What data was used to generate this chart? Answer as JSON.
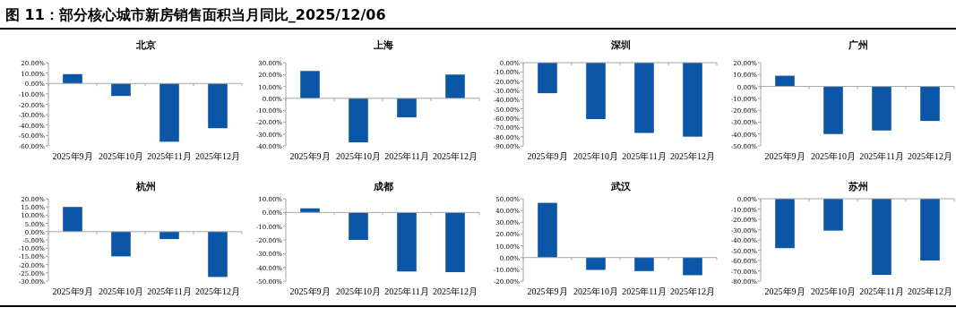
{
  "chart_data": [
    {
      "type": "bar",
      "title": "北京",
      "annotations": [
        "图 11：部分核心城市新房销售面积当月同比_2025/12/06"
      ],
      "categories": [
        "2025年9月",
        "2025年10月",
        "2025年11月",
        "2025年12月"
      ],
      "values": [
        9,
        -12,
        -56,
        -43
      ],
      "color": "#0b56a6",
      "ylim": [
        -60,
        20
      ],
      "yticks": [
        {
          "value": -60,
          "label": "-60.00%"
        },
        {
          "value": -50,
          "label": "-50.00%"
        },
        {
          "value": -40,
          "label": "-40.00%"
        },
        {
          "value": -30,
          "label": "-30.00%"
        },
        {
          "value": -20,
          "label": "-20.00%"
        },
        {
          "value": -10,
          "label": "-10.00%"
        },
        {
          "value": 0,
          "label": "0.00%"
        },
        {
          "value": 10,
          "label": "10.00%"
        },
        {
          "value": 20,
          "label": "20.00%"
        }
      ]
    },
    {
      "type": "bar",
      "title": "上海",
      "categories": [
        "2025年9月",
        "2025年10月",
        "2025年11月",
        "2025年12月"
      ],
      "values": [
        23,
        -37,
        -16,
        20
      ],
      "color": "#0b56a6",
      "ylim": [
        -40,
        30
      ],
      "yticks": [
        {
          "value": -40,
          "label": "-40.00%"
        },
        {
          "value": -30,
          "label": "-30.00%"
        },
        {
          "value": -20,
          "label": "-20.00%"
        },
        {
          "value": -10,
          "label": "-10.00%"
        },
        {
          "value": 0,
          "label": "0.00%"
        },
        {
          "value": 10,
          "label": "10.00%"
        },
        {
          "value": 20,
          "label": "20.00%"
        },
        {
          "value": 30,
          "label": "30.00%"
        }
      ]
    },
    {
      "type": "bar",
      "title": "深圳",
      "categories": [
        "2025年9月",
        "2025年10月",
        "2025年11月",
        "2025年12月"
      ],
      "values": [
        -33,
        -61,
        -76,
        -80
      ],
      "color": "#0b56a6",
      "ylim": [
        -90,
        0
      ],
      "yticks": [
        {
          "value": -90,
          "label": "-90.00%"
        },
        {
          "value": -80,
          "label": "-80.00%"
        },
        {
          "value": -70,
          "label": "-70.00%"
        },
        {
          "value": -60,
          "label": "-60.00%"
        },
        {
          "value": -50,
          "label": "-50.00%"
        },
        {
          "value": -40,
          "label": "-40.00%"
        },
        {
          "value": -30,
          "label": "-30.00%"
        },
        {
          "value": -20,
          "label": "-20.00%"
        },
        {
          "value": -10,
          "label": "-10.00%"
        },
        {
          "value": 0,
          "label": "0.00%"
        }
      ]
    },
    {
      "type": "bar",
      "title": "广州",
      "categories": [
        "2025年9月",
        "2025年10月",
        "2025年11月",
        "2025年12月"
      ],
      "values": [
        9,
        -40,
        -37,
        -29
      ],
      "color": "#0b56a6",
      "ylim": [
        -50,
        20
      ],
      "yticks": [
        {
          "value": -50,
          "label": "-50.00%"
        },
        {
          "value": -40,
          "label": "-40.00%"
        },
        {
          "value": -30,
          "label": "-30.00%"
        },
        {
          "value": -20,
          "label": "-20.00%"
        },
        {
          "value": -10,
          "label": "-10.00%"
        },
        {
          "value": 0,
          "label": "0.00%"
        },
        {
          "value": 10,
          "label": "10.00%"
        },
        {
          "value": 20,
          "label": "20.00%"
        }
      ]
    },
    {
      "type": "bar",
      "title": "杭州",
      "categories": [
        "2025年9月",
        "2025年10月",
        "2025年11月",
        "2025年12月"
      ],
      "values": [
        15,
        -15,
        -4.5,
        -27.5
      ],
      "color": "#0b56a6",
      "ylim": [
        -30,
        20
      ],
      "yticks": [
        {
          "value": -30,
          "label": "-30.00%"
        },
        {
          "value": -25,
          "label": "-25.00%"
        },
        {
          "value": -20,
          "label": "-20.00%"
        },
        {
          "value": -15,
          "label": "-15.00%"
        },
        {
          "value": -10,
          "label": "-10.00%"
        },
        {
          "value": -5,
          "label": "-5.00%"
        },
        {
          "value": 0,
          "label": "0.00%"
        },
        {
          "value": 5,
          "label": "5.00%"
        },
        {
          "value": 10,
          "label": "10.00%"
        },
        {
          "value": 15,
          "label": "15.00%"
        },
        {
          "value": 20,
          "label": "20.00%"
        }
      ]
    },
    {
      "type": "bar",
      "title": "成都",
      "categories": [
        "2025年9月",
        "2025年10月",
        "2025年11月",
        "2025年12月"
      ],
      "values": [
        3,
        -20,
        -43,
        -43.5
      ],
      "color": "#0b56a6",
      "ylim": [
        -50,
        10
      ],
      "yticks": [
        {
          "value": -50,
          "label": "-50.00%"
        },
        {
          "value": -40,
          "label": "-40.00%"
        },
        {
          "value": -30,
          "label": "-30.00%"
        },
        {
          "value": -20,
          "label": "-20.00%"
        },
        {
          "value": -10,
          "label": "-10.00%"
        },
        {
          "value": 0,
          "label": "0.00%"
        },
        {
          "value": 10,
          "label": "10.00%"
        }
      ]
    },
    {
      "type": "bar",
      "title": "武汉",
      "categories": [
        "2025年9月",
        "2025年10月",
        "2025年11月",
        "2025年12月"
      ],
      "values": [
        46.5,
        -10.5,
        -11.5,
        -15
      ],
      "color": "#0b56a6",
      "ylim": [
        -20,
        50
      ],
      "yticks": [
        {
          "value": -20,
          "label": "-20.00%"
        },
        {
          "value": -10,
          "label": "-10.00%"
        },
        {
          "value": 0,
          "label": "0.00%"
        },
        {
          "value": 10,
          "label": "10.00%"
        },
        {
          "value": 20,
          "label": "20.00%"
        },
        {
          "value": 30,
          "label": "30.00%"
        },
        {
          "value": 40,
          "label": "40.00%"
        },
        {
          "value": 50,
          "label": "50.00%"
        }
      ]
    },
    {
      "type": "bar",
      "title": "苏州",
      "categories": [
        "2025年9月",
        "2025年10月",
        "2025年11月",
        "2025年12月"
      ],
      "values": [
        -48,
        -31,
        -74,
        -60
      ],
      "color": "#0b56a6",
      "ylim": [
        -80,
        0
      ],
      "yticks": [
        {
          "value": -80,
          "label": "-80.00%"
        },
        {
          "value": -70,
          "label": "-70.00%"
        },
        {
          "value": -60,
          "label": "-60.00%"
        },
        {
          "value": -50,
          "label": "-50.00%"
        },
        {
          "value": -40,
          "label": "-40.00%"
        },
        {
          "value": -30,
          "label": "-30.00%"
        },
        {
          "value": -20,
          "label": "-20.00%"
        },
        {
          "value": -10,
          "label": "-10.00%"
        },
        {
          "value": 0,
          "label": "0.00%"
        }
      ]
    }
  ]
}
